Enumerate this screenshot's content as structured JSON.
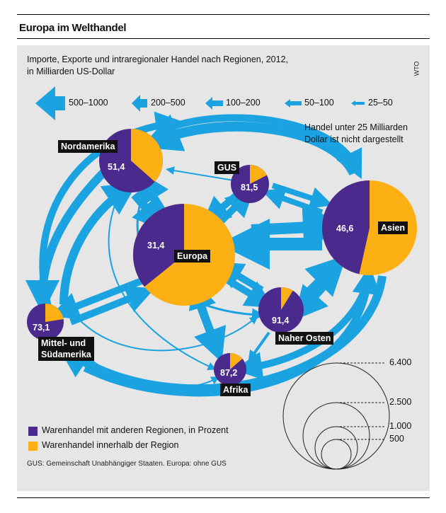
{
  "headline": "Europa im Welthandel",
  "subtitle_line1": "Importe, Exporte und intraregionaler Handel nach Regionen, 2012,",
  "subtitle_line2": "in Milliarden US-Dollar",
  "source": "WTO",
  "arrow_legend": [
    "500–1000",
    "200–500",
    "100–200",
    "50–100",
    "25–50"
  ],
  "note_line1": "Handel unter 25 Milliarden",
  "note_line2": "Dollar ist nicht dargestellt",
  "regions": {
    "nordamerika": {
      "label": "Nordamerika",
      "value": "51,4"
    },
    "gus": {
      "label": "GUS",
      "value": "81,5"
    },
    "asien": {
      "label": "Asien",
      "value": "46,6"
    },
    "europa": {
      "label": "Europa",
      "value": "31,4"
    },
    "mittel_line1": "Mittel- und",
    "mittel_line2": "Südamerika",
    "mittel": {
      "value": "73,1"
    },
    "naher_osten": {
      "label": "Naher Osten",
      "value": "91,4"
    },
    "afrika": {
      "label": "Afrika",
      "value": "87,2"
    }
  },
  "size_scale": [
    "6.400",
    "2.500",
    "1.000",
    "500"
  ],
  "legend": {
    "purple": "Warenhandel mit anderen Regionen, in Prozent",
    "orange": "Warenhandel innerhalb der Region"
  },
  "colors": {
    "purple": "#4a2a8c",
    "orange": "#fcb014",
    "arrow": "#1aa3e0",
    "panel": "#e6e6e6"
  },
  "footnote": "GUS: Gemeinschaft Unabhängiger Staaten. Europa: ohne GUS"
}
